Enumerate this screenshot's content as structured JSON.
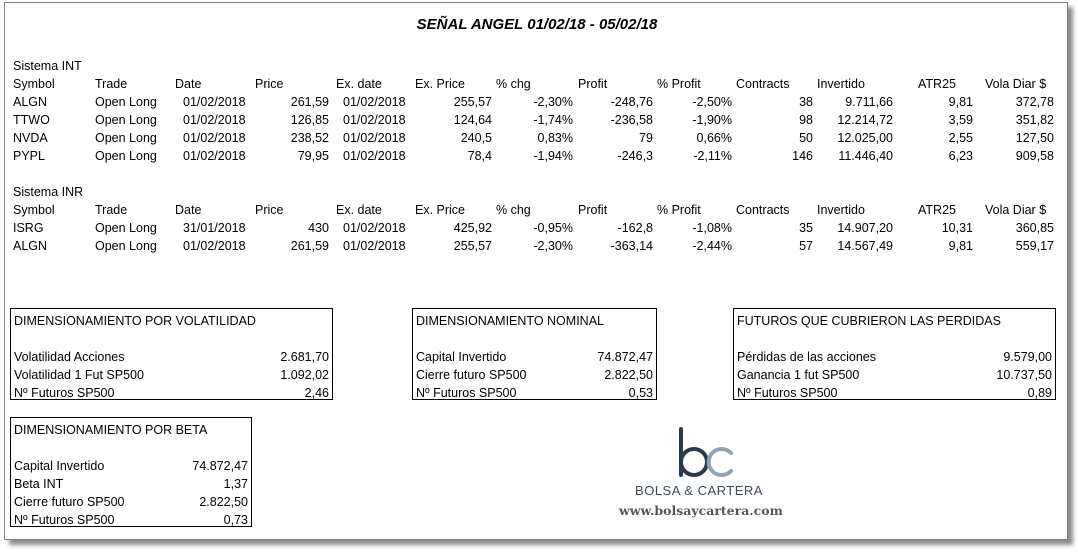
{
  "title": "SEÑAL ANGEL 01/02/18 - 05/02/18",
  "columns": [
    "Symbol",
    "Trade",
    "Date",
    "Price",
    "Ex. date",
    "Ex. Price",
    "% chg",
    "Profit",
    "% Profit",
    "Contracts",
    "Invertido",
    "ATR25",
    "Vola Diar $"
  ],
  "sections": [
    {
      "name": "Sistema INT",
      "rows": [
        [
          "ALGN",
          "Open Long",
          "01/02/2018",
          "261,59",
          "01/02/2018",
          "255,57",
          "-2,30%",
          "-248,76",
          "-2,50%",
          "38",
          "9.711,66",
          "9,81",
          "372,78"
        ],
        [
          "TTWO",
          "Open Long",
          "01/02/2018",
          "126,85",
          "01/02/2018",
          "124,64",
          "-1,74%",
          "-236,58",
          "-1,90%",
          "98",
          "12.214,72",
          "3,59",
          "351,82"
        ],
        [
          "NVDA",
          "Open Long",
          "01/02/2018",
          "238,52",
          "01/02/2018",
          "240,5",
          "0,83%",
          "79",
          "0,66%",
          "50",
          "12.025,00",
          "2,55",
          "127,50"
        ],
        [
          "PYPL",
          "Open Long",
          "01/02/2018",
          "79,95",
          "01/02/2018",
          "78,4",
          "-1,94%",
          "-246,3",
          "-2,11%",
          "146",
          "11.446,40",
          "6,23",
          "909,58"
        ]
      ]
    },
    {
      "name": "Sistema INR",
      "rows": [
        [
          "ISRG",
          "Open Long",
          "31/01/2018",
          "430",
          "01/02/2018",
          "425,92",
          "-0,95%",
          "-162,8",
          "-1,08%",
          "35",
          "14.907,20",
          "10,31",
          "360,85"
        ],
        [
          "ALGN",
          "Open Long",
          "01/02/2018",
          "261,59",
          "01/02/2018",
          "255,57",
          "-2,30%",
          "-363,14",
          "-2,44%",
          "57",
          "14.567,49",
          "9,81",
          "559,17"
        ]
      ]
    }
  ],
  "box_vol": {
    "title": "DIMENSIONAMIENTO POR VOLATILIDAD",
    "rows": [
      {
        "label": "Volatilidad Acciones",
        "value": "2.681,70"
      },
      {
        "label": "Volatilidad 1 Fut SP500",
        "value": "1.092,02"
      },
      {
        "label": "Nº Futuros SP500",
        "value": "2,46"
      }
    ]
  },
  "box_nominal": {
    "title": "DIMENSIONAMIENTO NOMINAL",
    "rows": [
      {
        "label": "Capital Invertido",
        "value": "74.872,47"
      },
      {
        "label": "Cierre futuro SP500",
        "value": "2.822,50"
      },
      {
        "label": "Nº Futuros SP500",
        "value": "0,53"
      }
    ]
  },
  "box_futuros": {
    "title": "FUTUROS QUE CUBRIERON LAS PERDIDAS",
    "rows": [
      {
        "label": "Pérdidas de las acciones",
        "value": "9.579,00"
      },
      {
        "label": "Ganancia 1 fut SP500",
        "value": "10.737,50"
      },
      {
        "label": "Nº Futuros SP500",
        "value": "0,89"
      }
    ]
  },
  "box_beta": {
    "title": "DIMENSIONAMIENTO POR BETA",
    "rows": [
      {
        "label": "Capital Invertido",
        "value": "74.872,47"
      },
      {
        "label": "Beta INT",
        "value": "1,37"
      },
      {
        "label": "Cierre futuro SP500",
        "value": "2.822,50"
      },
      {
        "label": "Nº Futuros SP500",
        "value": "0,73"
      }
    ]
  },
  "logo": {
    "name": "BOLSA & CARTERA",
    "url": "www.bolsaycartera.com",
    "colors": {
      "b": "#2b3a4a",
      "c": "#8fa3b8"
    }
  }
}
